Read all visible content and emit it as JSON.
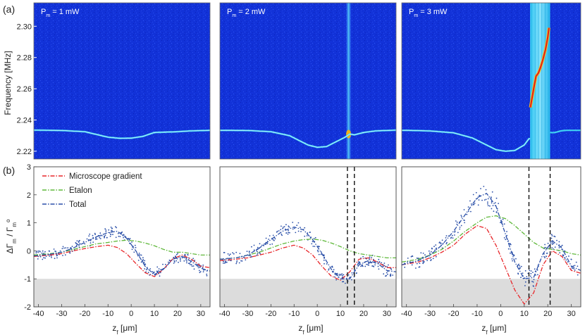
{
  "figure": {
    "panel_a_label": "(a)",
    "panel_b_label": "(b)"
  },
  "chart_data": [
    {
      "type": "heatmap",
      "panel": "(a)",
      "ylabel": "Frequency [MHz]",
      "yticks": [
        "2.30",
        "2.28",
        "2.26",
        "2.24",
        "2.22"
      ],
      "ylim": [
        2.215,
        2.315
      ],
      "subplots": [
        {
          "title_main": "P",
          "title_sub": "m",
          "title_rest": " = 1 mW",
          "trace": {
            "z": [
              -40,
              -30,
              -20,
              -10,
              -5,
              0,
              5,
              10,
              20,
              25,
              30,
              34
            ],
            "f": [
              2.2335,
              2.2333,
              2.2325,
              2.229,
              2.2283,
              2.2284,
              2.2295,
              2.232,
              2.2325,
              2.233,
              2.2332,
              2.2334
            ]
          }
        },
        {
          "title_main": "P",
          "title_sub": "m",
          "title_rest": " = 2 mW",
          "trace": {
            "z": [
              -40,
              -30,
              -20,
              -12,
              -8,
              -4,
              0,
              4,
              8,
              12,
              14,
              16,
              20,
              25,
              30,
              34
            ],
            "f": [
              2.2334,
              2.2333,
              2.2325,
              2.23,
              2.227,
              2.224,
              2.2225,
              2.223,
              2.226,
              2.229,
              2.231,
              2.2305,
              2.232,
              2.233,
              2.2333,
              2.2335
            ]
          },
          "hot_z": 13.5
        },
        {
          "title_main": "P",
          "title_sub": "m",
          "title_rest": " = 3 mW",
          "trace": {
            "z": [
              -40,
              -30,
              -20,
              -12,
              -6,
              -2,
              2,
              6,
              10,
              12
            ],
            "f": [
              2.2334,
              2.233,
              2.2318,
              2.2285,
              2.224,
              2.221,
              2.22,
              2.2205,
              2.224,
              2.228
            ]
          },
          "band_z": [
            12.5,
            21
          ],
          "hot_trace": {
            "z": [
              12.6,
              14,
              15,
              16,
              17,
              18,
              19,
              20,
              20.5
            ],
            "f": [
              2.248,
              2.26,
              2.268,
              2.27,
              2.274,
              2.279,
              2.285,
              2.293,
              2.299
            ]
          }
        }
      ]
    },
    {
      "type": "line",
      "panel": "(b)",
      "xlabel_main": "z",
      "xlabel_sub": "f",
      "xlabel_rest": " [μm]",
      "ylabel_parts": [
        "ΔΓ",
        "m",
        " / Γ",
        "m",
        "o"
      ],
      "xlim": [
        -42,
        34
      ],
      "ylim": [
        -2,
        3
      ],
      "xticks": [
        -40,
        -30,
        -20,
        -10,
        0,
        10,
        20,
        30
      ],
      "yticks": [
        3,
        2,
        1,
        0,
        -1,
        -2
      ],
      "shaded_below": -1,
      "legend": [
        {
          "label": "Microscope gradient",
          "color": "#e8262a"
        },
        {
          "label": "Etalon",
          "color": "#5fb83a"
        },
        {
          "label": "Total",
          "color": "#2a4fa8"
        }
      ],
      "subplots": [
        {
          "dashed_lines": [],
          "x": [
            -42,
            -35,
            -30,
            -25,
            -20,
            -15,
            -10,
            -6,
            -2,
            2,
            6,
            10,
            14,
            18,
            22,
            26,
            30,
            34
          ],
          "microscope": [
            -0.2,
            -0.15,
            -0.1,
            0.0,
            0.08,
            0.15,
            0.2,
            0.12,
            -0.1,
            -0.45,
            -0.78,
            -0.92,
            -0.65,
            -0.28,
            -0.15,
            -0.3,
            -0.55,
            -0.6
          ],
          "etalon": [
            -0.15,
            -0.1,
            -0.05,
            0.05,
            0.15,
            0.25,
            0.3,
            0.35,
            0.38,
            0.35,
            0.28,
            0.18,
            0.05,
            -0.05,
            -0.05,
            -0.1,
            -0.15,
            -0.15
          ],
          "total": [
            -0.18,
            -0.12,
            -0.05,
            0.1,
            0.3,
            0.5,
            0.65,
            0.7,
            0.45,
            0.0,
            -0.55,
            -0.85,
            -0.65,
            -0.3,
            -0.2,
            -0.38,
            -0.62,
            -0.72
          ]
        },
        {
          "dashed_lines": [
            13,
            16
          ],
          "x": [
            -42,
            -35,
            -30,
            -25,
            -20,
            -15,
            -10,
            -6,
            -2,
            2,
            6,
            10,
            14,
            18,
            22,
            26,
            30,
            34
          ],
          "microscope": [
            -0.35,
            -0.3,
            -0.25,
            -0.15,
            -0.05,
            0.1,
            0.2,
            0.1,
            -0.15,
            -0.55,
            -0.9,
            -1.05,
            -0.75,
            -0.3,
            -0.25,
            -0.4,
            -0.6,
            -0.6
          ],
          "etalon": [
            -0.3,
            -0.25,
            -0.15,
            -0.05,
            0.1,
            0.25,
            0.35,
            0.4,
            0.42,
            0.38,
            0.28,
            0.15,
            0.0,
            -0.1,
            -0.15,
            -0.2,
            -0.25,
            -0.25
          ],
          "total": [
            -0.3,
            -0.25,
            -0.15,
            0.1,
            0.4,
            0.7,
            0.85,
            0.75,
            0.4,
            -0.1,
            -0.65,
            -1.0,
            -1.0,
            -0.5,
            -0.35,
            -0.45,
            -0.7,
            -0.75
          ]
        },
        {
          "dashed_lines": [
            12,
            21
          ],
          "x": [
            -42,
            -35,
            -30,
            -25,
            -20,
            -15,
            -10,
            -6,
            -2,
            2,
            6,
            10,
            14,
            18,
            22,
            26,
            30,
            34
          ],
          "microscope": [
            -0.5,
            -0.4,
            -0.25,
            -0.05,
            0.2,
            0.6,
            0.9,
            0.8,
            0.2,
            -0.6,
            -1.4,
            -1.9,
            -1.5,
            -0.5,
            0.0,
            -0.2,
            -0.7,
            -0.8
          ],
          "etalon": [
            -0.4,
            -0.3,
            -0.15,
            0.05,
            0.35,
            0.7,
            1.0,
            1.2,
            1.25,
            1.15,
            0.9,
            0.6,
            0.3,
            0.1,
            0.05,
            0.0,
            -0.1,
            -0.15
          ],
          "total": [
            -0.5,
            -0.35,
            -0.15,
            0.2,
            0.7,
            1.3,
            1.9,
            2.05,
            1.6,
            0.6,
            -0.4,
            -1.0,
            -0.95,
            -0.1,
            0.35,
            0.1,
            -0.55,
            -0.7
          ]
        }
      ]
    }
  ]
}
